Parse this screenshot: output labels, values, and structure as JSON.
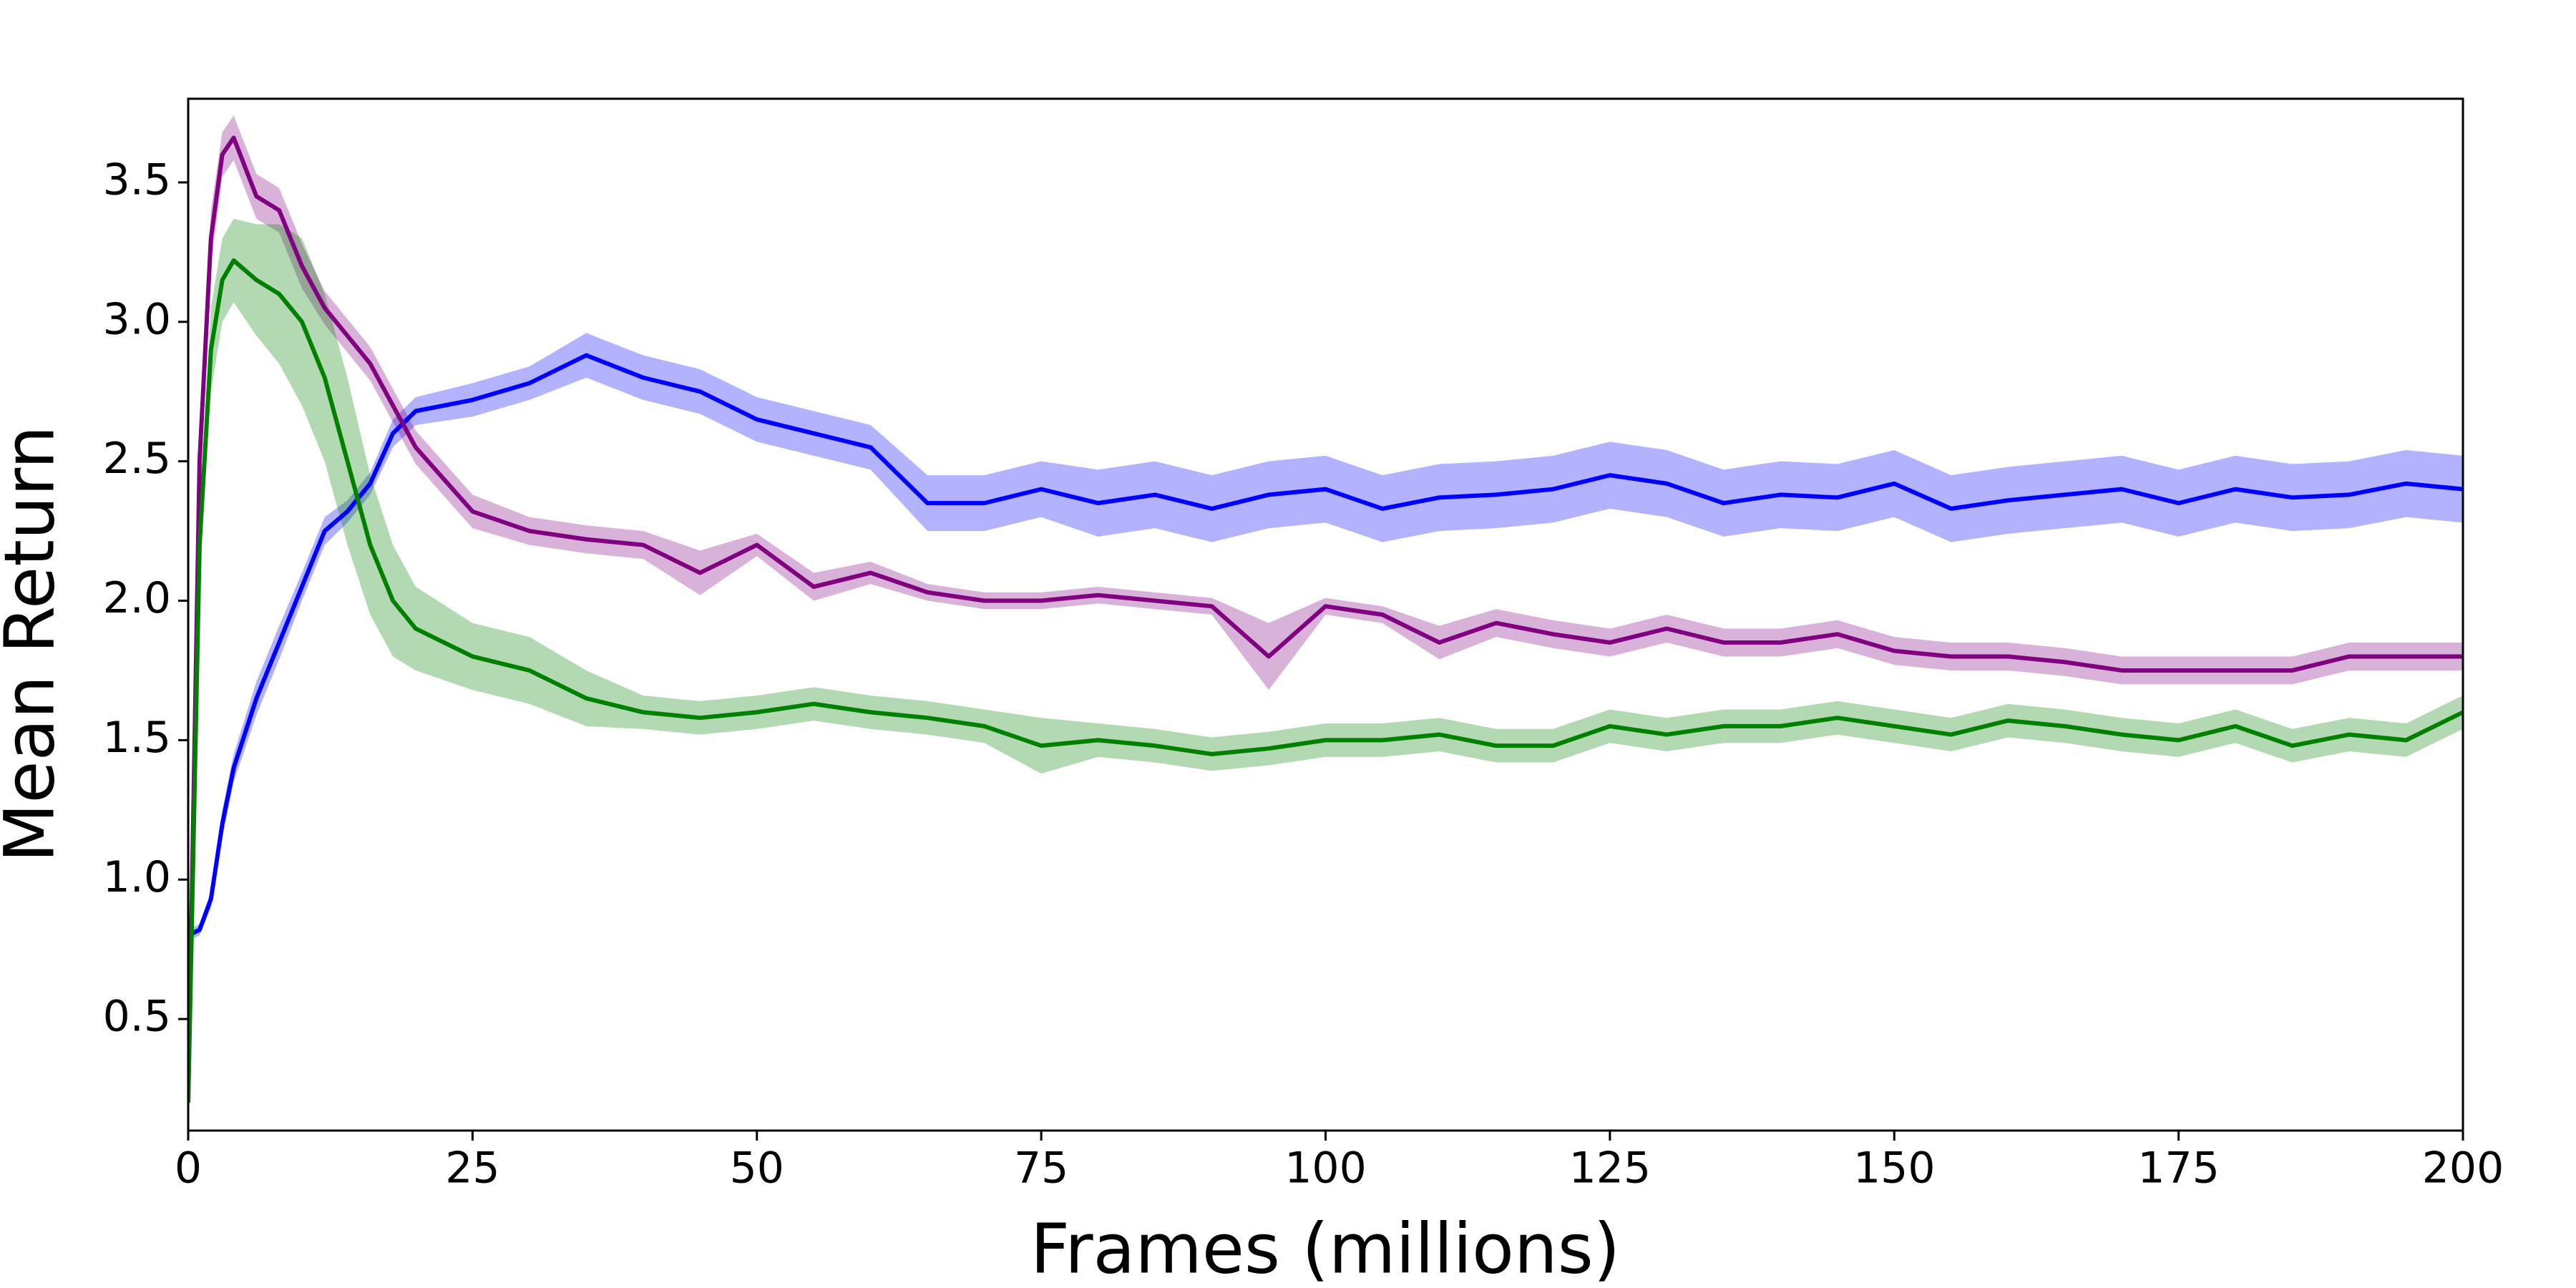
{
  "chart_data": {
    "type": "line",
    "x_label": "Frames (millions)",
    "y_label": "Mean Return",
    "xlim": [
      0,
      200
    ],
    "ylim": [
      0.1,
      3.8
    ],
    "xticks": [
      0,
      25,
      50,
      75,
      100,
      125,
      150,
      175,
      200
    ],
    "yticks": [
      0.5,
      {
        "value": 1,
        "label": "1.0"
      },
      1.5,
      {
        "value": 2,
        "label": "2.0"
      },
      2.5,
      {
        "value": 3,
        "label": "3.0"
      },
      3.5
    ],
    "grid": false,
    "x": [
      0,
      1,
      2,
      3,
      4,
      6,
      8,
      10,
      12,
      14,
      16,
      18,
      20,
      25,
      30,
      35,
      40,
      45,
      50,
      55,
      60,
      65,
      70,
      75,
      80,
      85,
      90,
      95,
      100,
      105,
      110,
      115,
      120,
      125,
      130,
      135,
      140,
      145,
      150,
      155,
      160,
      165,
      170,
      175,
      180,
      185,
      190,
      195,
      200
    ],
    "series": [
      {
        "color": "#0000ff",
        "values": [
          0.8,
          0.82,
          0.93,
          1.2,
          1.4,
          1.65,
          1.85,
          2.05,
          2.25,
          2.32,
          2.42,
          2.6,
          2.68,
          2.72,
          2.78,
          2.88,
          2.8,
          2.75,
          2.65,
          2.6,
          2.55,
          2.35,
          2.35,
          2.4,
          2.35,
          2.38,
          2.33,
          2.38,
          2.4,
          2.33,
          2.37,
          2.38,
          2.4,
          2.45,
          2.42,
          2.35,
          2.38,
          2.37,
          2.42,
          2.33,
          2.36,
          2.38,
          2.4,
          2.35,
          2.4,
          2.37,
          2.38,
          2.42,
          2.4
        ],
        "errors": [
          0.02,
          0.02,
          0.03,
          0.05,
          0.05,
          0.06,
          0.06,
          0.05,
          0.05,
          0.04,
          0.04,
          0.05,
          0.05,
          0.06,
          0.06,
          0.08,
          0.08,
          0.08,
          0.08,
          0.08,
          0.08,
          0.1,
          0.1,
          0.1,
          0.12,
          0.12,
          0.12,
          0.12,
          0.12,
          0.12,
          0.12,
          0.12,
          0.12,
          0.12,
          0.12,
          0.12,
          0.12,
          0.12,
          0.12,
          0.12,
          0.12,
          0.12,
          0.12,
          0.12,
          0.12,
          0.12,
          0.12,
          0.12,
          0.12
        ]
      },
      {
        "color": "#800080",
        "values": [
          0.2,
          2.5,
          3.3,
          3.6,
          3.66,
          3.45,
          3.4,
          3.2,
          3.05,
          2.95,
          2.85,
          2.7,
          2.55,
          2.32,
          2.25,
          2.22,
          2.2,
          2.1,
          2.2,
          2.05,
          2.1,
          2.03,
          2.0,
          2.0,
          2.02,
          2.0,
          1.98,
          1.8,
          1.98,
          1.95,
          1.85,
          1.92,
          1.88,
          1.85,
          1.9,
          1.85,
          1.85,
          1.88,
          1.82,
          1.8,
          1.8,
          1.78,
          1.75,
          1.75,
          1.75,
          1.75,
          1.8,
          1.8,
          1.8
        ],
        "errors": [
          0.02,
          0.1,
          0.1,
          0.08,
          0.08,
          0.08,
          0.08,
          0.08,
          0.06,
          0.06,
          0.06,
          0.06,
          0.06,
          0.06,
          0.05,
          0.05,
          0.05,
          0.08,
          0.04,
          0.05,
          0.04,
          0.03,
          0.03,
          0.03,
          0.03,
          0.03,
          0.03,
          0.12,
          0.03,
          0.03,
          0.06,
          0.05,
          0.05,
          0.05,
          0.05,
          0.05,
          0.05,
          0.05,
          0.05,
          0.05,
          0.05,
          0.05,
          0.05,
          0.05,
          0.05,
          0.05,
          0.05,
          0.05,
          0.05
        ]
      },
      {
        "color": "#008000",
        "values": [
          0.2,
          2.2,
          2.9,
          3.15,
          3.22,
          3.15,
          3.1,
          3.0,
          2.8,
          2.5,
          2.2,
          2.0,
          1.9,
          1.8,
          1.75,
          1.65,
          1.6,
          1.58,
          1.6,
          1.63,
          1.6,
          1.58,
          1.55,
          1.48,
          1.5,
          1.48,
          1.45,
          1.47,
          1.5,
          1.5,
          1.52,
          1.48,
          1.48,
          1.55,
          1.52,
          1.55,
          1.55,
          1.58,
          1.55,
          1.52,
          1.57,
          1.55,
          1.52,
          1.5,
          1.55,
          1.48,
          1.52,
          1.5,
          1.6
        ],
        "errors": [
          0.02,
          0.1,
          0.15,
          0.15,
          0.15,
          0.2,
          0.25,
          0.3,
          0.3,
          0.3,
          0.25,
          0.2,
          0.15,
          0.12,
          0.12,
          0.1,
          0.06,
          0.06,
          0.06,
          0.06,
          0.06,
          0.06,
          0.06,
          0.1,
          0.06,
          0.06,
          0.06,
          0.06,
          0.06,
          0.06,
          0.06,
          0.06,
          0.06,
          0.06,
          0.06,
          0.06,
          0.06,
          0.06,
          0.06,
          0.06,
          0.06,
          0.06,
          0.06,
          0.06,
          0.06,
          0.06,
          0.06,
          0.06,
          0.06
        ]
      }
    ]
  }
}
